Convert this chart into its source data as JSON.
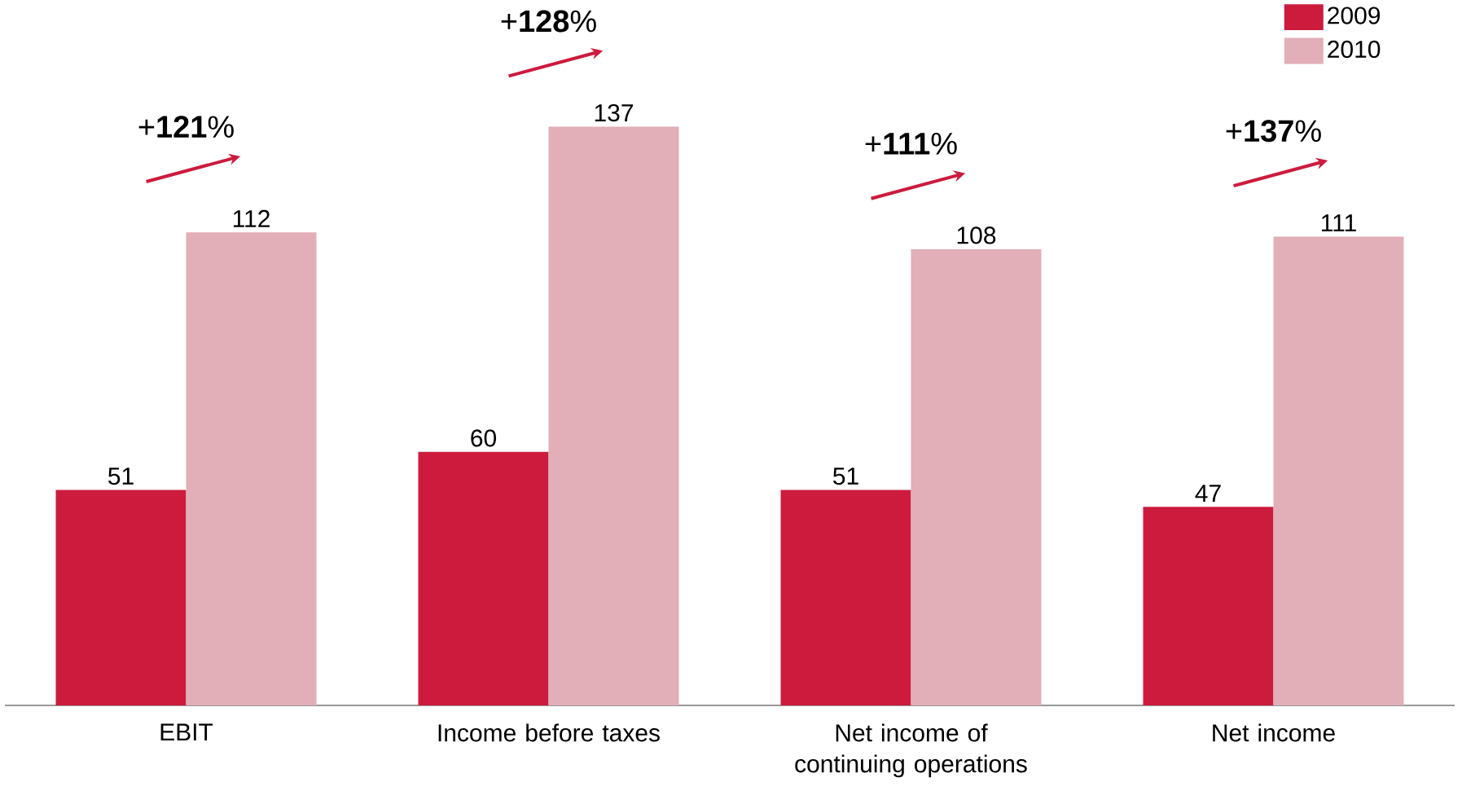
{
  "chart_data": {
    "type": "bar",
    "categories": [
      "EBIT",
      "Income before taxes",
      "Net income of continuing operations",
      "Net income"
    ],
    "series": [
      {
        "name": "2009",
        "color": "#cc1b3d",
        "values": [
          51,
          60,
          51,
          47
        ]
      },
      {
        "name": "2010",
        "color": "#e2aeb8",
        "values": [
          112,
          137,
          108,
          111
        ]
      }
    ],
    "data_labels": true,
    "legend": "top right",
    "ylim": [
      0,
      167
    ],
    "annotations": [
      "+**121**%",
      "+**128**%",
      "+**111**%",
      "+**137**%"
    ]
  }
}
